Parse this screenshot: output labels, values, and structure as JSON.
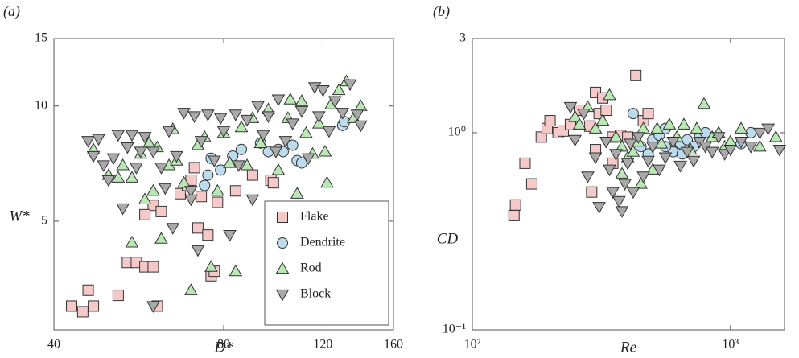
{
  "chart_data": [
    {
      "type": "scatter",
      "panel_label": "(a)",
      "xlabel": "D*",
      "ylabel": "W*",
      "log_x": true,
      "log_y": true,
      "xlim": [
        40,
        160
      ],
      "ylim": [
        2.6,
        15
      ],
      "xticks": [
        40,
        80,
        120,
        160
      ],
      "yticks": [
        5,
        10,
        15
      ],
      "legend": "lower right",
      "series": [
        {
          "name": "Flake",
          "color": "#f6c9c9",
          "marker": "square",
          "x": [
            43,
            45,
            46,
            47,
            52,
            54,
            56,
            58,
            60,
            60,
            61,
            62,
            67,
            69,
            70,
            71,
            72,
            75,
            76,
            77,
            78,
            84,
            90,
            97,
            98,
            58,
            73
          ],
          "y": [
            3.0,
            2.9,
            3.3,
            3.0,
            3.2,
            3.9,
            3.9,
            3.8,
            3.8,
            5.5,
            3.0,
            5.3,
            5.9,
            6.2,
            6.4,
            6.9,
            4.8,
            4.6,
            3.6,
            3.7,
            5.6,
            6.0,
            6.6,
            6.4,
            6.3,
            5.2,
            5.8
          ]
        },
        {
          "name": "Dendrite",
          "color": "#bcdcee",
          "marker": "circle",
          "x": [
            74,
            75,
            76,
            79,
            83,
            86,
            93,
            96,
            100,
            102,
            106,
            108,
            110,
            130,
            131
          ],
          "y": [
            6.2,
            6.6,
            7.3,
            6.8,
            7.4,
            7.7,
            8.0,
            7.6,
            7.7,
            7.6,
            7.9,
            7.2,
            7.1,
            8.9,
            9.1
          ]
        },
        {
          "name": "Rod",
          "color": "#b9e8b5",
          "marker": "triangle-up",
          "x": [
            47,
            50,
            52,
            53,
            55,
            55,
            57,
            58,
            59,
            60,
            61,
            62,
            64,
            65,
            66,
            68,
            70,
            72,
            74,
            76,
            78,
            80,
            82,
            84,
            86,
            88,
            90,
            93,
            96,
            100,
            104,
            108,
            110,
            112,
            115,
            118,
            121,
            122,
            124,
            128,
            132,
            140,
            136,
            105
          ],
          "y": [
            7.7,
            6.6,
            6.5,
            7.0,
            6.5,
            4.4,
            7.5,
            5.7,
            8.0,
            6.0,
            7.8,
            4.5,
            7.0,
            8.7,
            7.2,
            6.3,
            3.3,
            7.9,
            8.3,
            3.8,
            6.0,
            8.5,
            7.1,
            3.7,
            8.8,
            7.0,
            9.3,
            8.0,
            9.8,
            6.8,
            9.3,
            5.9,
            10.3,
            8.5,
            7.5,
            9.0,
            7.6,
            6.3,
            10.1,
            11.0,
            11.6,
            10.0,
            9.3,
            10.4
          ]
        },
        {
          "name": "Block",
          "color": "#a9a9a9",
          "marker": "triangle-down",
          "x": [
            46,
            47,
            48,
            49,
            50,
            51,
            52,
            53,
            54,
            55,
            56,
            57,
            58,
            60,
            62,
            63,
            64,
            65,
            66,
            68,
            70,
            71,
            72,
            73,
            75,
            77,
            79,
            80,
            82,
            84,
            85,
            88,
            90,
            92,
            94,
            96,
            99,
            100,
            103,
            106,
            110,
            113,
            116,
            118,
            120,
            123,
            126,
            130,
            134,
            140,
            138,
            60,
            70
          ],
          "y": [
            8.1,
            7.4,
            8.2,
            7.0,
            6.4,
            7.3,
            8.4,
            5.4,
            7.8,
            8.4,
            6.9,
            7.6,
            8.3,
            7.6,
            6.9,
            6.1,
            8.6,
            4.8,
            7.4,
            9.6,
            6.0,
            9.4,
            4.2,
            8.1,
            9.5,
            7.2,
            9.3,
            8.6,
            4.6,
            9.5,
            7.0,
            9.2,
            5.7,
            10.0,
            8.4,
            9.4,
            7.6,
            10.4,
            8.1,
            9.0,
            9.7,
            7.3,
            11.2,
            9.4,
            11.0,
            8.6,
            10.3,
            9.6,
            11.4,
            8.9,
            9.5,
            3.0,
            5.7
          ]
        }
      ]
    },
    {
      "type": "scatter",
      "panel_label": "(b)",
      "xlabel": "Re",
      "ylabel": "CD",
      "log_x": true,
      "log_y": true,
      "xlim": [
        100,
        1620
      ],
      "ylim": [
        0.1,
        3
      ],
      "xticks": [
        {
          "value": 100,
          "label": "10²"
        },
        {
          "value": 1000,
          "label": "10³"
        }
      ],
      "yticks": [
        {
          "value": 0.1,
          "label": "10⁻¹"
        },
        {
          "value": 1,
          "label": "10⁰"
        },
        3
      ],
      "series": [
        {
          "color": "#f6c9c9",
          "marker": "square",
          "x": [
            145,
            147,
            160,
            170,
            185,
            195,
            200,
            215,
            225,
            240,
            260,
            285,
            300,
            310,
            330,
            320,
            350,
            375,
            400,
            430,
            460,
            480,
            300,
            290,
            350
          ],
          "y": [
            0.38,
            0.43,
            0.7,
            0.55,
            0.95,
            1.05,
            1.15,
            1.0,
            1.02,
            1.1,
            1.3,
            1.08,
            1.6,
            1.25,
            1.3,
            1.5,
            0.95,
            0.97,
            0.95,
            1.95,
            1.15,
            1.25,
            0.82,
            0.5,
            0.7
          ]
        },
        {
          "color": "#bcdcee",
          "marker": "circle",
          "x": [
            420,
            450,
            480,
            500,
            530,
            560,
            600,
            640,
            680,
            720,
            760,
            800,
            560,
            1100,
            1200,
            650
          ],
          "y": [
            1.25,
            0.85,
            0.78,
            0.92,
            0.97,
            1.05,
            0.8,
            0.88,
            0.92,
            0.85,
            0.95,
            1.0,
            0.85,
            0.88,
            1.0,
            0.78
          ]
        },
        {
          "color": "#b9e8b5",
          "marker": "triangle-up",
          "x": [
            250,
            260,
            280,
            300,
            320,
            340,
            360,
            380,
            400,
            420,
            440,
            460,
            500,
            520,
            540,
            580,
            620,
            660,
            700,
            740,
            790,
            850,
            900,
            950,
            1000,
            1100,
            1300,
            1500,
            450,
            380
          ],
          "y": [
            1.2,
            1.1,
            1.35,
            1.05,
            1.15,
            1.55,
            0.95,
            0.85,
            0.75,
            0.8,
            0.9,
            1.05,
            0.65,
            1.05,
            0.88,
            1.1,
            0.95,
            1.1,
            0.82,
            1.05,
            1.4,
            0.95,
            1.0,
            0.85,
            0.9,
            1.05,
            0.85,
            0.95,
            0.55,
            0.62
          ]
        },
        {
          "color": "#a9a9a9",
          "marker": "triangle-down",
          "x": [
            240,
            270,
            300,
            310,
            330,
            340,
            350,
            360,
            370,
            380,
            390,
            400,
            410,
            420,
            440,
            460,
            480,
            500,
            530,
            560,
            600,
            640,
            680,
            720,
            760,
            800,
            850,
            900,
            950,
            1000,
            1100,
            1200,
            1300,
            1400,
            1550,
            250,
            280
          ],
          "y": [
            1.35,
            1.25,
            0.75,
            0.42,
            0.9,
            0.65,
            0.5,
            0.78,
            0.45,
            0.4,
            0.55,
            0.7,
            0.88,
            0.5,
            0.95,
            0.6,
            0.72,
            0.85,
            0.65,
            0.75,
            0.9,
            0.68,
            0.8,
            0.72,
            0.9,
            0.85,
            0.8,
            0.95,
            0.78,
            0.82,
            0.9,
            0.85,
            1.0,
            1.05,
            0.82,
            0.92,
            0.6
          ]
        }
      ]
    }
  ]
}
